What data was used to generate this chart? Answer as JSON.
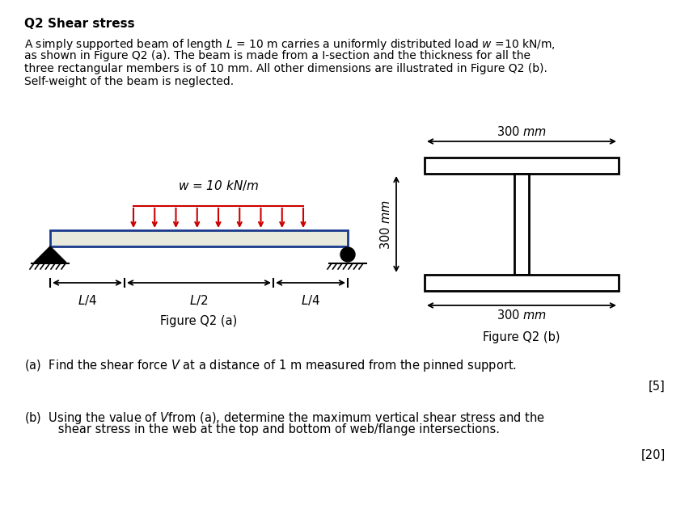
{
  "title": "Q2 Shear stress",
  "para_lines": [
    "A simply supported beam of length $L$ = 10 m carries a uniformly distributed load $w$ =10 kN/m,",
    "as shown in Figure Q2 (a). The beam is made from a I-section and the thickness for all the",
    "three rectangular members is of 10 mm. All other dimensions are illustrated in Figure Q2 (b).",
    "Self-weight of the beam is neglected."
  ],
  "fig_a_label": "Figure Q2 (a)",
  "fig_b_label": "Figure Q2 (b)",
  "w_label": "$w$ = 10 $kN/m$",
  "dim_300mm_top": "300 $mm$",
  "dim_300mm_side": "300 $mm$",
  "dim_300mm_bot": "300 $mm$",
  "qa_line1": "(a)  Find the shear force $V$ at a distance of 1 m measured from the pinned support.",
  "qa_mark": "[5]",
  "qb_line1": "(b)  Using the value of $V$​from (a), determine the maximum vertical shear stress and the",
  "qb_line2": "      shear stress in the web at the top and bottom of web/flange intersections.",
  "qb_mark": "[20]",
  "beam_fill": "#e8eade",
  "beam_edge": "#1a3a8c",
  "arrow_red": "#cc0000",
  "black": "#000000",
  "white": "#ffffff"
}
